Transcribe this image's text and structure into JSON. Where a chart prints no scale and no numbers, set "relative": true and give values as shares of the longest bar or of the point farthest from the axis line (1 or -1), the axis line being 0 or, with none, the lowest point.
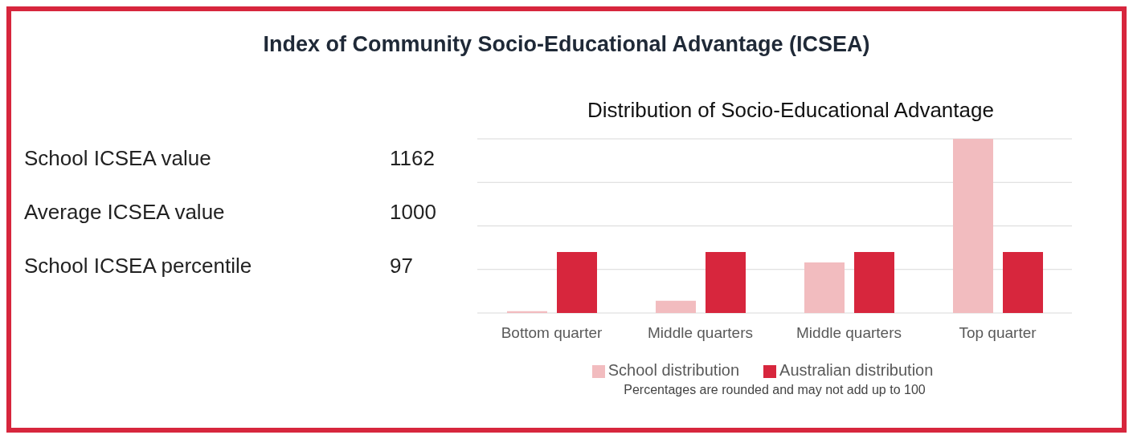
{
  "chart_data": [
    {
      "type": "other",
      "title": "Index of Community Socio-Educational Advantage (ICSEA)",
      "categories": [
        "School ICSEA value",
        "Average ICSEA value",
        "School ICSEA percentile"
      ],
      "values": [
        1162,
        1000,
        97
      ],
      "data_labels": true
    },
    {
      "type": "bar",
      "title": "Distribution of Socio-Educational Advantage",
      "categories": [
        "Bottom quarter",
        "Middle quarters",
        "Middle quarters",
        "Top quarter"
      ],
      "relative": true,
      "grid": "y",
      "legend": "bottom",
      "series": [
        {
          "name": "School distribution",
          "color": "#f2bcbf",
          "values": [
            0.01,
            0.07,
            0.29,
            1
          ]
        },
        {
          "name": "Australian distribution",
          "color": "#d7263d",
          "values": [
            0.35,
            0.35,
            0.35,
            0.35
          ]
        }
      ],
      "annotations": [
        "Percentages are rounded and may not add up to 100"
      ]
    }
  ]
}
